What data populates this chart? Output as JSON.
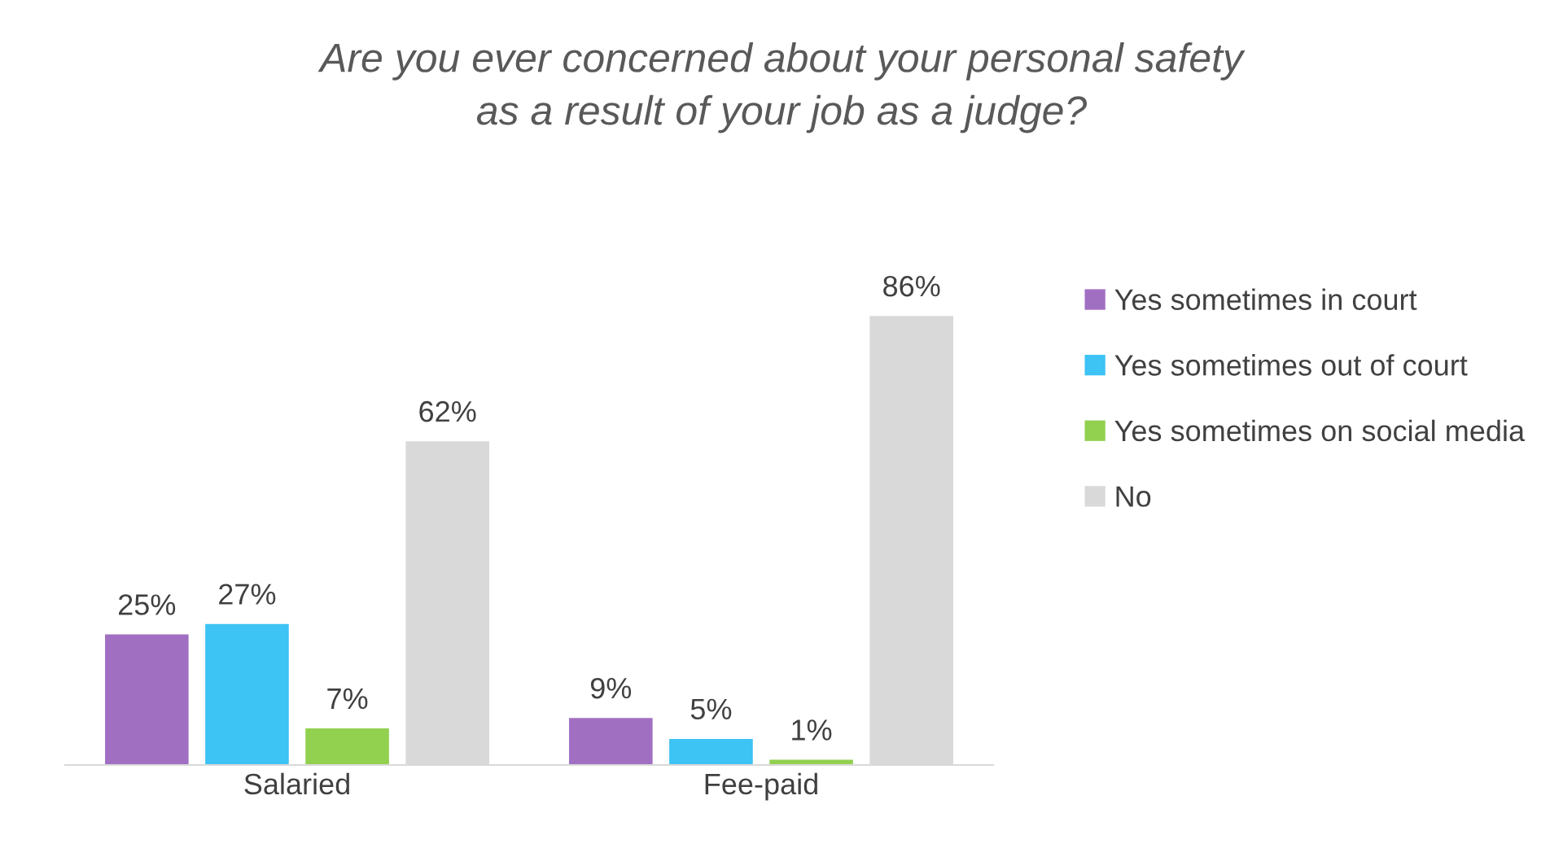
{
  "chart_data": {
    "type": "bar",
    "title": "Are you ever concerned about your personal safety\nas a result of your job as a judge?",
    "categories": [
      "Salaried",
      "Fee-paid"
    ],
    "series": [
      {
        "name": "Yes sometimes in court",
        "color": "#a16fc2",
        "values": [
          25,
          9
        ],
        "value_labels": [
          "25%",
          "9%"
        ]
      },
      {
        "name": "Yes sometimes out of court",
        "color": "#3dc3f4",
        "values": [
          27,
          5
        ],
        "value_labels": [
          "27%",
          "5%"
        ]
      },
      {
        "name": "Yes sometimes on social media",
        "color": "#92d050",
        "values": [
          7,
          1
        ],
        "value_labels": [
          "7%",
          "1%"
        ]
      },
      {
        "name": "No",
        "color": "#d9d9d9",
        "values": [
          62,
          86
        ],
        "value_labels": [
          "62%",
          "86%"
        ]
      }
    ],
    "tick_labels": "x",
    "legend": "right"
  }
}
